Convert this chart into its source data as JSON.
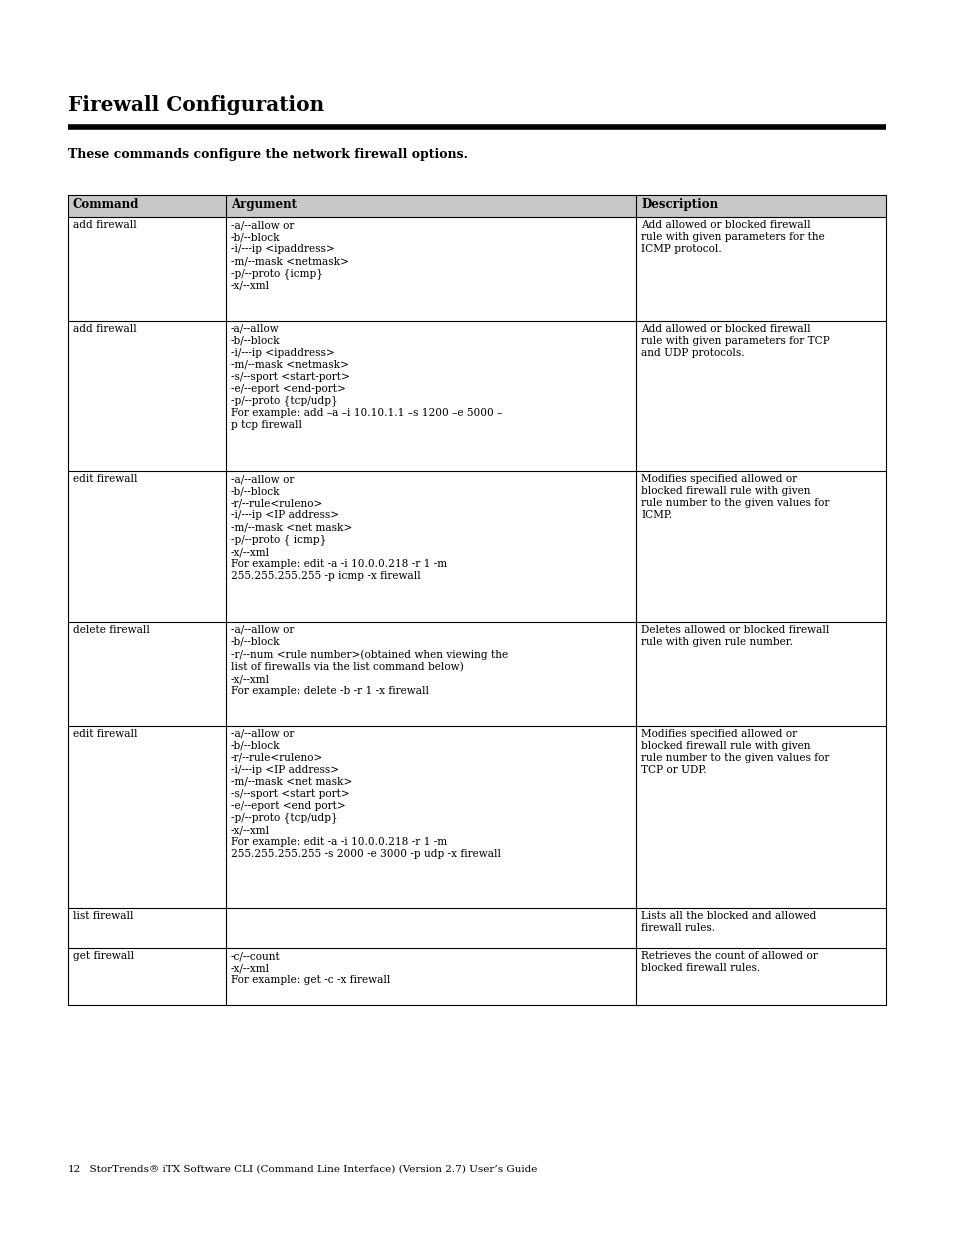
{
  "title": "Firewall Configuration",
  "subtitle": "These commands configure the network firewall options.",
  "footer_num": "12",
  "footer_text": "  StorTrends® iTX Software CLI (Command Line Interface) (Version 2.7) User’s Guide",
  "bg_color": "#ffffff",
  "table_header": [
    "Command",
    "Argument",
    "Description"
  ],
  "rows": [
    {
      "command": "add firewall",
      "argument": "-a/--allow or\n-b/--block\n-i/---ip <ipaddress>\n-m/--mask <netmask>\n-p/--proto {icmp}\n-x/--xml",
      "description": "Add allowed or blocked firewall\nrule with given parameters for the\nICMP protocol."
    },
    {
      "command": "add firewall",
      "argument": "-a/--allow\n-b/--block\n-i/---ip <ipaddress>\n-m/--mask <netmask>\n-s/--sport <start-port>\n-e/--eport <end-port>\n-p/--proto {tcp/udp}\nFor example: add –a –i 10.10.1.1 –s 1200 –e 5000 –\np tcp firewall",
      "description": "Add allowed or blocked firewall\nrule with given parameters for TCP\nand UDP protocols."
    },
    {
      "command": "edit firewall",
      "argument": "-a/--allow or\n-b/--block\n-r/--rule<ruleno>\n-i/---ip <IP address>\n-m/--mask <net mask>\n-p/--proto { icmp}\n-x/--xml\nFor example: edit -a -i 10.0.0.218 -r 1 -m\n255.255.255.255 -p icmp -x firewall",
      "description": "Modifies specified allowed or\nblocked firewall rule with given\nrule number to the given values for\nICMP."
    },
    {
      "command": "delete firewall",
      "argument": "-a/--allow or\n-b/--block\n-r/--num <rule number>(obtained when viewing the\nlist of firewalls via the list command below)\n-x/--xml\nFor example: delete -b -r 1 -x firewall",
      "description": "Deletes allowed or blocked firewall\nrule with given rule number."
    },
    {
      "command": "edit firewall",
      "argument": "-a/--allow or\n-b/--block\n-r/--rule<ruleno>\n-i/---ip <IP address>\n-m/--mask <net mask>\n-s/--sport <start port>\n-e/--eport <end port>\n-p/--proto {tcp/udp}\n-x/--xml\nFor example: edit -a -i 10.0.0.218 -r 1 -m\n255.255.255.255 -s 2000 -e 3000 -p udp -x firewall",
      "description": "Modifies specified allowed or\nblocked firewall rule with given\nrule number to the given values for\nTCP or UDP."
    },
    {
      "command": "list firewall",
      "argument": "",
      "description": "Lists all the blocked and allowed\nfirewall rules."
    },
    {
      "command": "get firewall",
      "argument": "-c/--count\n-x/--xml\nFor example: get -c -x firewall",
      "description": "Retrieves the count of allowed or\nblocked firewall rules."
    }
  ]
}
